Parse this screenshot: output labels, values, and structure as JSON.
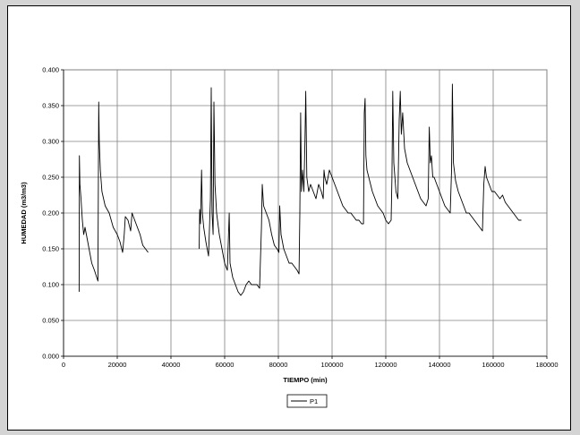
{
  "chart_data": {
    "type": "line",
    "xlabel": "TIEMPO (min)",
    "ylabel": "HUMEDAD (m3/m3)",
    "xlim": [
      0,
      180000
    ],
    "ylim": [
      0,
      0.4
    ],
    "x_ticks": [
      0,
      20000,
      40000,
      60000,
      80000,
      100000,
      120000,
      140000,
      160000,
      180000
    ],
    "x_tick_labels": [
      "0",
      "20000",
      "40000",
      "60000",
      "80000",
      "100000",
      "120000",
      "140000",
      "160000",
      "180000"
    ],
    "y_ticks": [
      0,
      0.05,
      0.1,
      0.15,
      0.2,
      0.25,
      0.3,
      0.35,
      0.4
    ],
    "y_tick_labels": [
      "0.000",
      "0.050",
      "0.100",
      "0.150",
      "0.200",
      "0.250",
      "0.300",
      "0.350",
      "0.400"
    ],
    "grid": true,
    "legend": "bottom",
    "line_color": "#000000",
    "series": [
      {
        "name": "P1",
        "segments": [
          [
            [
              5800,
              0.09
            ],
            [
              5900,
              0.28
            ],
            [
              6100,
              0.24
            ],
            [
              6500,
              0.22
            ],
            [
              7000,
              0.19
            ],
            [
              7500,
              0.17
            ],
            [
              8000,
              0.18
            ],
            [
              8500,
              0.17
            ],
            [
              9500,
              0.15
            ],
            [
              10500,
              0.13
            ],
            [
              11500,
              0.12
            ],
            [
              12800,
              0.105
            ],
            [
              13100,
              0.355
            ],
            [
              13300,
              0.3
            ],
            [
              13700,
              0.26
            ],
            [
              14300,
              0.23
            ],
            [
              15500,
              0.21
            ],
            [
              17000,
              0.2
            ],
            [
              18500,
              0.18
            ],
            [
              20000,
              0.17
            ],
            [
              21000,
              0.16
            ],
            [
              22000,
              0.145
            ],
            [
              22600,
              0.17
            ],
            [
              23000,
              0.195
            ],
            [
              24000,
              0.19
            ],
            [
              25000,
              0.175
            ],
            [
              25500,
              0.2
            ],
            [
              26500,
              0.19
            ],
            [
              27500,
              0.18
            ],
            [
              28500,
              0.17
            ],
            [
              29500,
              0.155
            ],
            [
              30500,
              0.15
            ],
            [
              31500,
              0.145
            ]
          ],
          [
            [
              50500,
              0.15
            ],
            [
              50700,
              0.205
            ],
            [
              51000,
              0.185
            ],
            [
              51400,
              0.26
            ],
            [
              51700,
              0.2
            ],
            [
              52200,
              0.18
            ],
            [
              53000,
              0.16
            ],
            [
              54000,
              0.14
            ],
            [
              54700,
              0.22
            ],
            [
              55000,
              0.375
            ],
            [
              55300,
              0.2
            ],
            [
              55700,
              0.17
            ],
            [
              56000,
              0.355
            ],
            [
              56400,
              0.24
            ],
            [
              57000,
              0.2
            ],
            [
              58000,
              0.17
            ],
            [
              59000,
              0.15
            ],
            [
              60000,
              0.13
            ],
            [
              61000,
              0.12
            ],
            [
              61700,
              0.2
            ],
            [
              62000,
              0.13
            ],
            [
              63000,
              0.11
            ],
            [
              64000,
              0.1
            ],
            [
              65000,
              0.09
            ],
            [
              66000,
              0.085
            ],
            [
              67000,
              0.09
            ],
            [
              68000,
              0.1
            ],
            [
              69000,
              0.105
            ],
            [
              70000,
              0.1
            ],
            [
              71000,
              0.1
            ],
            [
              72000,
              0.1
            ],
            [
              73000,
              0.095
            ],
            [
              73700,
              0.18
            ],
            [
              74000,
              0.24
            ],
            [
              74500,
              0.21
            ],
            [
              75500,
              0.2
            ],
            [
              76500,
              0.19
            ],
            [
              77500,
              0.17
            ],
            [
              78500,
              0.155
            ],
            [
              79500,
              0.15
            ],
            [
              80200,
              0.145
            ],
            [
              80500,
              0.21
            ],
            [
              81000,
              0.17
            ],
            [
              82000,
              0.15
            ],
            [
              83000,
              0.14
            ],
            [
              84000,
              0.13
            ],
            [
              85000,
              0.13
            ],
            [
              86000,
              0.125
            ],
            [
              87000,
              0.12
            ],
            [
              87700,
              0.115
            ],
            [
              88000,
              0.2
            ],
            [
              88300,
              0.34
            ],
            [
              88600,
              0.23
            ],
            [
              89000,
              0.26
            ],
            [
              89500,
              0.23
            ],
            [
              89900,
              0.3
            ],
            [
              90200,
              0.37
            ],
            [
              90600,
              0.25
            ],
            [
              91300,
              0.23
            ],
            [
              92000,
              0.24
            ],
            [
              93000,
              0.23
            ],
            [
              94000,
              0.22
            ],
            [
              95000,
              0.24
            ],
            [
              96000,
              0.23
            ],
            [
              96700,
              0.22
            ],
            [
              97000,
              0.26
            ],
            [
              97300,
              0.25
            ],
            [
              98000,
              0.24
            ],
            [
              99000,
              0.26
            ],
            [
              100000,
              0.25
            ],
            [
              101000,
              0.24
            ],
            [
              102000,
              0.23
            ],
            [
              103000,
              0.22
            ],
            [
              104000,
              0.21
            ],
            [
              105000,
              0.205
            ],
            [
              106000,
              0.2
            ],
            [
              107000,
              0.2
            ],
            [
              108000,
              0.195
            ],
            [
              109000,
              0.19
            ],
            [
              110000,
              0.19
            ],
            [
              111000,
              0.185
            ],
            [
              111700,
              0.185
            ],
            [
              112000,
              0.34
            ],
            [
              112300,
              0.36
            ],
            [
              112600,
              0.28
            ],
            [
              113000,
              0.26
            ],
            [
              114000,
              0.245
            ],
            [
              115000,
              0.23
            ],
            [
              116000,
              0.22
            ],
            [
              117000,
              0.21
            ],
            [
              118000,
              0.205
            ],
            [
              119000,
              0.2
            ],
            [
              120000,
              0.19
            ],
            [
              121000,
              0.185
            ],
            [
              122000,
              0.19
            ],
            [
              122300,
              0.25
            ],
            [
              122600,
              0.37
            ],
            [
              123000,
              0.27
            ],
            [
              123800,
              0.23
            ],
            [
              124500,
              0.22
            ],
            [
              125000,
              0.33
            ],
            [
              125400,
              0.37
            ],
            [
              125800,
              0.31
            ],
            [
              126300,
              0.34
            ],
            [
              127000,
              0.29
            ],
            [
              128000,
              0.27
            ],
            [
              129000,
              0.26
            ],
            [
              130000,
              0.25
            ],
            [
              131000,
              0.24
            ],
            [
              132000,
              0.23
            ],
            [
              133000,
              0.22
            ],
            [
              134000,
              0.215
            ],
            [
              135000,
              0.21
            ],
            [
              135800,
              0.22
            ],
            [
              136200,
              0.32
            ],
            [
              136600,
              0.27
            ],
            [
              137000,
              0.28
            ],
            [
              137500,
              0.25
            ],
            [
              138000,
              0.25
            ],
            [
              139000,
              0.24
            ],
            [
              140000,
              0.23
            ],
            [
              141000,
              0.22
            ],
            [
              142000,
              0.21
            ],
            [
              143000,
              0.205
            ],
            [
              144000,
              0.2
            ],
            [
              144500,
              0.26
            ],
            [
              144800,
              0.38
            ],
            [
              145200,
              0.27
            ],
            [
              146000,
              0.245
            ],
            [
              147000,
              0.23
            ],
            [
              148000,
              0.22
            ],
            [
              149000,
              0.21
            ],
            [
              150000,
              0.2
            ],
            [
              151000,
              0.2
            ],
            [
              152000,
              0.195
            ],
            [
              153000,
              0.19
            ],
            [
              154000,
              0.185
            ],
            [
              155000,
              0.18
            ],
            [
              156000,
              0.175
            ],
            [
              156500,
              0.24
            ],
            [
              157000,
              0.265
            ],
            [
              157500,
              0.25
            ],
            [
              158500,
              0.24
            ],
            [
              159500,
              0.23
            ],
            [
              160500,
              0.23
            ],
            [
              161500,
              0.225
            ],
            [
              162500,
              0.22
            ],
            [
              163500,
              0.225
            ],
            [
              164500,
              0.215
            ],
            [
              165500,
              0.21
            ],
            [
              166500,
              0.205
            ],
            [
              167500,
              0.2
            ],
            [
              168500,
              0.195
            ],
            [
              169500,
              0.19
            ],
            [
              170500,
              0.19
            ]
          ]
        ]
      }
    ]
  }
}
